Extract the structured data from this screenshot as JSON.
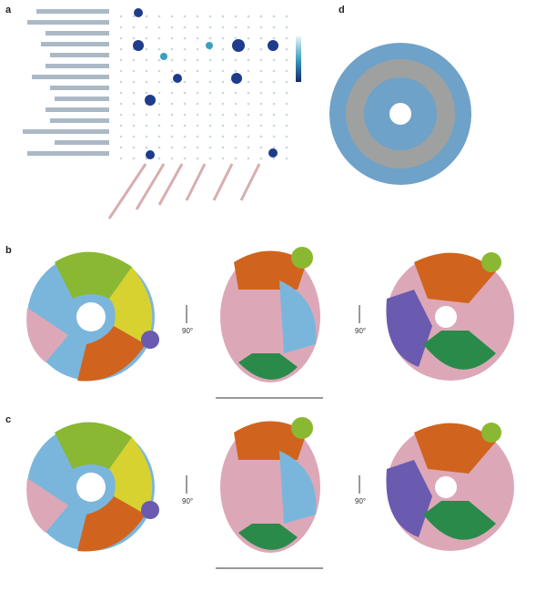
{
  "panels": {
    "a": "a",
    "b": "b",
    "c": "c",
    "d": "d"
  },
  "rotation_labels": [
    "90°",
    "90°",
    "90°",
    "90°"
  ]
}
